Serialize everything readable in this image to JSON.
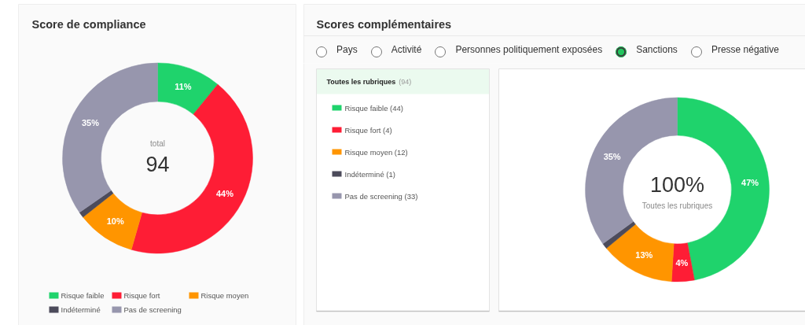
{
  "chart_data": [
    {
      "type": "donut",
      "title": "Score de compliance",
      "categories": [
        "Risque faible",
        "Risque fort",
        "Risque moyen",
        "Indéterminé",
        "Pas de screening"
      ],
      "values": [
        11,
        44,
        10,
        1,
        35
      ],
      "colors": [
        "#1fd36c",
        "#fe1d35",
        "#ff9500",
        "#4c4b5b",
        "#9796ad"
      ],
      "value_labels": [
        "11%",
        "44%",
        "10%",
        null,
        "35%"
      ],
      "annotations": [
        "total",
        "94"
      ],
      "legend": "bottom"
    },
    {
      "type": "donut",
      "title": "Scores complémentaires",
      "categories": [
        "Risque faible (44)",
        "Risque fort (4)",
        "Risque moyen (12)",
        "Indéterminé (1)",
        "Pas de screening (33)"
      ],
      "values": [
        47,
        4,
        13,
        1,
        35
      ],
      "colors": [
        "#1fd36c",
        "#fe1d35",
        "#ff9500",
        "#4c4b5b",
        "#9796ad"
      ],
      "value_labels": [
        "47%",
        "4%",
        "13%",
        null,
        "35%"
      ],
      "legend_title": "Toutes les rubriques (94)",
      "annotations": [
        "100%",
        "Toutes les rubriques",
        "Pays",
        "Activité",
        "Personnes politiquement exposées",
        "Sanctions",
        "Presse négative"
      ],
      "legend": "left"
    }
  ]
}
